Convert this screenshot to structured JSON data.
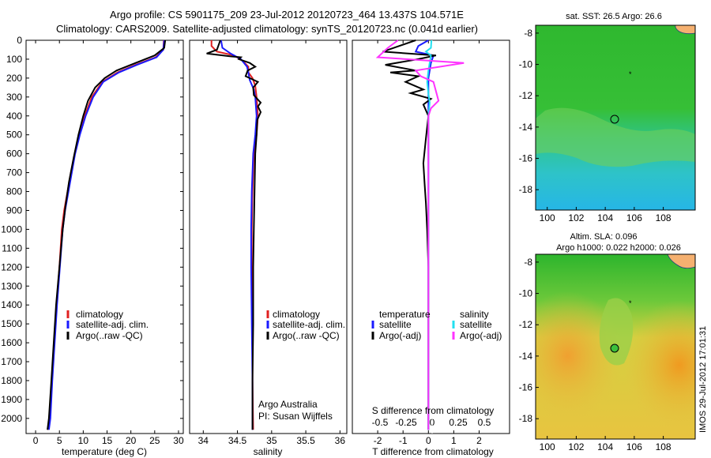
{
  "header": {
    "line1": "Argo profile: CS 5901175_209 23-Jul-2012 20120723_464 13.437S 104.571E",
    "line2": "Climatology: CARS2009. Satellite-adjusted climatology: synTS_20120723.nc (0.041d earlier)"
  },
  "colors": {
    "climatology": "#e02020",
    "satellite": "#1a1aff",
    "argo": "#000000",
    "sal_satellite": "#22e0f0",
    "sal_argo": "#ff33ff"
  },
  "chart_data": [
    {
      "type": "line",
      "name": "temperature-panel",
      "xlabel": "temperature (deg C)",
      "ylabel": "",
      "xlim": [
        -2,
        31
      ],
      "ylim": [
        0,
        2080
      ],
      "y_reversed": true,
      "xticks": [
        "0",
        "5",
        "10",
        "15",
        "20",
        "25",
        "30"
      ],
      "yticks": [
        "0",
        "100",
        "200",
        "300",
        "400",
        "500",
        "600",
        "700",
        "800",
        "900",
        "1000",
        "1100",
        "1200",
        "1300",
        "1400",
        "1500",
        "1600",
        "1700",
        "1800",
        "1900",
        "2000"
      ],
      "legend": [
        "climatology",
        "satellite-adj. clim.",
        "Argo(..raw -QC)"
      ],
      "series": [
        {
          "name": "climatology",
          "color": "#e02020",
          "points": [
            [
              26.9,
              0
            ],
            [
              26.8,
              50
            ],
            [
              25.2,
              90
            ],
            [
              21,
              130
            ],
            [
              17.2,
              170
            ],
            [
              14,
              220
            ],
            [
              11.8,
              300
            ],
            [
              10.3,
              400
            ],
            [
              9.1,
              500
            ],
            [
              8.2,
              600
            ],
            [
              7.4,
              700
            ],
            [
              6.7,
              800
            ],
            [
              6,
              900
            ],
            [
              5.5,
              1000
            ],
            [
              5,
              1200
            ],
            [
              4.4,
              1400
            ],
            [
              3.9,
              1600
            ],
            [
              3.4,
              1800
            ],
            [
              2.9,
              2000
            ],
            [
              2.6,
              2060
            ]
          ]
        },
        {
          "name": "satellite-adj. clim.",
          "color": "#1a1aff",
          "points": [
            [
              27,
              0
            ],
            [
              26.8,
              50
            ],
            [
              25.4,
              90
            ],
            [
              21.3,
              130
            ],
            [
              17.5,
              170
            ],
            [
              14.2,
              220
            ],
            [
              12.1,
              300
            ],
            [
              10.5,
              400
            ],
            [
              9.3,
              500
            ],
            [
              8.3,
              600
            ],
            [
              7.6,
              700
            ],
            [
              6.9,
              800
            ],
            [
              6.2,
              900
            ],
            [
              5.7,
              1000
            ],
            [
              5.1,
              1200
            ],
            [
              4.5,
              1400
            ],
            [
              4,
              1600
            ],
            [
              3.5,
              1800
            ],
            [
              3.1,
              2000
            ],
            [
              2.8,
              2060
            ]
          ]
        },
        {
          "name": "Argo(..raw -QC)",
          "color": "#000000",
          "points": [
            [
              27.2,
              0
            ],
            [
              27,
              40
            ],
            [
              25,
              80
            ],
            [
              21,
              120
            ],
            [
              17,
              160
            ],
            [
              14.5,
              200
            ],
            [
              12.5,
              250
            ],
            [
              11,
              320
            ],
            [
              10,
              400
            ],
            [
              9,
              500
            ],
            [
              8,
              620
            ],
            [
              7,
              750
            ],
            [
              6.3,
              870
            ],
            [
              5.7,
              1000
            ],
            [
              5,
              1200
            ],
            [
              4.3,
              1400
            ],
            [
              3.8,
              1600
            ],
            [
              3.3,
              1800
            ],
            [
              2.8,
              2000
            ],
            [
              2.5,
              2060
            ]
          ]
        }
      ]
    },
    {
      "type": "line",
      "name": "salinity-panel",
      "xlabel": "salinity",
      "xlim": [
        33.8,
        36.1
      ],
      "ylim": [
        0,
        2080
      ],
      "y_reversed": true,
      "xticks": [
        "34",
        "34.5",
        "35",
        "35.5",
        "36"
      ],
      "legend": [
        "climatology",
        "satellite-adj. clim.",
        "Argo(..raw -QC)"
      ],
      "annotations": [
        "Argo Australia",
        "PI: Susan Wijffels"
      ],
      "series": [
        {
          "name": "climatology",
          "color": "#e02020",
          "points": [
            [
              34.12,
              0
            ],
            [
              34.12,
              30
            ],
            [
              34.2,
              60
            ],
            [
              34.45,
              80
            ],
            [
              34.58,
              110
            ],
            [
              34.66,
              140
            ],
            [
              34.66,
              170
            ],
            [
              34.72,
              200
            ],
            [
              34.76,
              240
            ],
            [
              34.78,
              300
            ],
            [
              34.8,
              400
            ],
            [
              34.78,
              500
            ],
            [
              34.74,
              600
            ],
            [
              34.72,
              800
            ],
            [
              34.71,
              1000
            ],
            [
              34.71,
              1200
            ],
            [
              34.72,
              1500
            ],
            [
              34.72,
              1800
            ],
            [
              34.73,
              2060
            ]
          ]
        },
        {
          "name": "satellite-adj. clim.",
          "color": "#1a1aff",
          "points": [
            [
              34.26,
              0
            ],
            [
              34.28,
              40
            ],
            [
              34.4,
              70
            ],
            [
              34.55,
              100
            ],
            [
              34.64,
              140
            ],
            [
              34.66,
              170
            ],
            [
              34.68,
              210
            ],
            [
              34.74,
              260
            ],
            [
              34.76,
              300
            ],
            [
              34.78,
              400
            ],
            [
              34.76,
              500
            ],
            [
              34.73,
              600
            ],
            [
              34.71,
              800
            ],
            [
              34.7,
              1000
            ],
            [
              34.7,
              1200
            ],
            [
              34.71,
              1500
            ],
            [
              34.72,
              1800
            ],
            [
              34.72,
              2060
            ]
          ]
        },
        {
          "name": "Argo(..raw -QC)",
          "color": "#000000",
          "points": [
            [
              34.25,
              0
            ],
            [
              34.2,
              50
            ],
            [
              34.05,
              70
            ],
            [
              34.4,
              85
            ],
            [
              34.55,
              90
            ],
            [
              34.52,
              100
            ],
            [
              34.68,
              120
            ],
            [
              34.76,
              140
            ],
            [
              34.65,
              160
            ],
            [
              34.62,
              190
            ],
            [
              34.8,
              220
            ],
            [
              34.73,
              250
            ],
            [
              34.74,
              290
            ],
            [
              34.84,
              330
            ],
            [
              34.8,
              350
            ],
            [
              34.84,
              380
            ],
            [
              34.79,
              420
            ],
            [
              34.78,
              500
            ],
            [
              34.76,
              600
            ],
            [
              34.75,
              800
            ],
            [
              34.74,
              1000
            ],
            [
              34.73,
              1200
            ],
            [
              34.73,
              1500
            ],
            [
              34.72,
              1800
            ],
            [
              34.72,
              2060
            ]
          ]
        }
      ]
    },
    {
      "type": "line",
      "name": "difference-panel",
      "xlabel": "T difference from climatology",
      "xlabel_top": "S difference from climatology",
      "xlim": [
        -3,
        3.2
      ],
      "ylim": [
        0,
        2080
      ],
      "y_reversed": true,
      "xticks": [
        "-2",
        "-1",
        "0",
        "1",
        "2"
      ],
      "s_xticks": [
        "-0.5",
        "-0.25",
        "0",
        "0.25",
        "0.5"
      ],
      "legend": {
        "col1_title": "temperature",
        "col2_title": "salinity",
        "col1": [
          "satellite",
          "Argo(-adj)"
        ],
        "col2": [
          "satellite",
          "Argo(-adj)"
        ]
      },
      "series": [
        {
          "name": "temperature satellite",
          "color": "#1a1aff",
          "points": [
            [
              0,
              0
            ],
            [
              -0.4,
              30
            ],
            [
              -0.5,
              60
            ],
            [
              0.2,
              80
            ],
            [
              0.1,
              120
            ],
            [
              0,
              200
            ],
            [
              0,
              400
            ],
            [
              0,
              800
            ],
            [
              0,
              1200
            ],
            [
              0,
              1600
            ],
            [
              0,
              2060
            ]
          ]
        },
        {
          "name": "temperature Argo(-adj)",
          "color": "#000000",
          "points": [
            [
              -0.5,
              0
            ],
            [
              -1.8,
              60
            ],
            [
              0.3,
              80
            ],
            [
              -0.4,
              100
            ],
            [
              -1.7,
              130
            ],
            [
              -0.5,
              160
            ],
            [
              -1.5,
              170
            ],
            [
              -0.4,
              190
            ],
            [
              -0.9,
              220
            ],
            [
              -0.2,
              260
            ],
            [
              -0.7,
              280
            ],
            [
              0.1,
              310
            ],
            [
              -0.2,
              340
            ],
            [
              0,
              400
            ],
            [
              -0.1,
              520
            ],
            [
              -0.2,
              650
            ],
            [
              -0.15,
              760
            ],
            [
              -0.1,
              860
            ],
            [
              -0.05,
              1000
            ],
            [
              0,
              1200
            ],
            [
              0,
              1600
            ],
            [
              0,
              2060
            ]
          ]
        },
        {
          "name": "salinity satellite",
          "color": "#22e0f0",
          "points": [
            [
              0.12,
              0
            ],
            [
              0.1,
              40
            ],
            [
              -0.1,
              60
            ],
            [
              0.1,
              80
            ],
            [
              0.05,
              120
            ],
            [
              0,
              160
            ],
            [
              -0.05,
              220
            ],
            [
              0,
              280
            ],
            [
              0.05,
              330
            ],
            [
              0,
              400
            ],
            [
              0,
              600
            ],
            [
              0,
              1000
            ],
            [
              0,
              1400
            ],
            [
              0,
              2060
            ]
          ]
        },
        {
          "name": "salinity Argo(-adj)",
          "color": "#ff33ff",
          "points": [
            [
              -1.2,
              0
            ],
            [
              -1.6,
              40
            ],
            [
              -2,
              90
            ],
            [
              1.4,
              120
            ],
            [
              -0.5,
              160
            ],
            [
              -0.3,
              190
            ],
            [
              0.2,
              220
            ],
            [
              0.4,
              320
            ],
            [
              0.1,
              360
            ],
            [
              0,
              400
            ],
            [
              0,
              700
            ],
            [
              0,
              1000
            ],
            [
              0,
              1400
            ],
            [
              0,
              2060
            ]
          ]
        }
      ]
    }
  ],
  "maps": {
    "sst": {
      "title": "sat. SST: 26.5 Argo: 26.6",
      "xticks": [
        "100",
        "102",
        "104",
        "106",
        "108"
      ],
      "yticks": [
        "-8",
        "-10",
        "-12",
        "-14",
        "-16",
        "-18"
      ]
    },
    "sla": {
      "title1": "Altim. SLA: 0.096",
      "title2": "Argo h1000: 0.022 h2000: 0.026",
      "xticks": [
        "100",
        "102",
        "104",
        "106",
        "108"
      ],
      "yticks": [
        "-8",
        "-10",
        "-12",
        "-14",
        "-16",
        "-18"
      ]
    }
  },
  "footer_stamp": "IMOS 29-Jul-2012 17:01:31"
}
